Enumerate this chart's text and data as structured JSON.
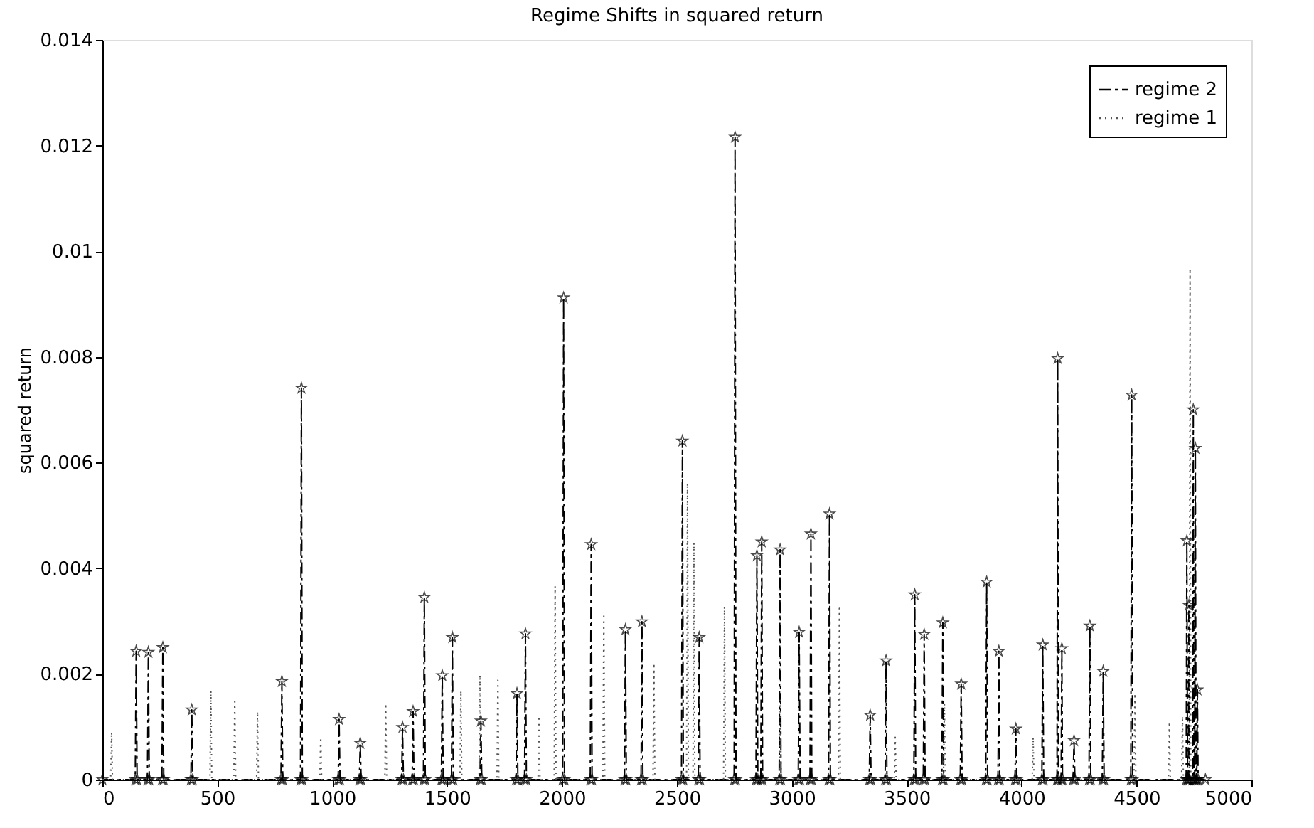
{
  "chart_data": {
    "type": "line",
    "title": "Regime Shifts in squared return",
    "ylabel": "squared return",
    "xlim": [
      0,
      5000
    ],
    "xticks": [
      0,
      500,
      1000,
      1500,
      2000,
      2500,
      3000,
      3500,
      4000,
      4500,
      5000
    ],
    "ylim": [
      0,
      0.014
    ],
    "yticks": [
      0,
      0.002,
      0.004,
      0.006,
      0.008,
      0.01,
      0.012,
      0.014
    ],
    "grid": false,
    "legend": "top right",
    "series": [
      {
        "name": "regime 2",
        "color": "#000000",
        "marker": "star",
        "line_style": "dashed",
        "x": [
          0,
          143,
          147,
          151,
          196,
          200,
          204,
          259,
          263,
          267,
          385,
          389,
          393,
          777,
          781,
          785,
          862,
          866,
          870,
          1026,
          1030,
          1034,
          1118,
          1122,
          1126,
          1302,
          1306,
          1310,
          1348,
          1352,
          1356,
          1397,
          1401,
          1405,
          1475,
          1479,
          1483,
          1519,
          1523,
          1527,
          1643,
          1647,
          1651,
          1800,
          1804,
          1808,
          1837,
          1841,
          1845,
          2003,
          2007,
          2011,
          2123,
          2127,
          2131,
          2272,
          2276,
          2280,
          2344,
          2348,
          2352,
          2520,
          2524,
          2528,
          2593,
          2597,
          2601,
          2749,
          2753,
          2757,
          2844,
          2848,
          2852,
          2865,
          2869,
          2873,
          2945,
          2949,
          2953,
          3028,
          3032,
          3036,
          3079,
          3083,
          3087,
          3160,
          3164,
          3168,
          3337,
          3341,
          3345,
          3406,
          3410,
          3414,
          3531,
          3535,
          3539,
          3572,
          3576,
          3580,
          3653,
          3657,
          3661,
          3733,
          3737,
          3741,
          3844,
          3848,
          3852,
          3897,
          3901,
          3905,
          3971,
          3975,
          3979,
          4088,
          4092,
          4096,
          4154,
          4157,
          4160,
          4172,
          4175,
          4178,
          4224,
          4228,
          4232,
          4293,
          4297,
          4301,
          4351,
          4355,
          4359,
          4475,
          4479,
          4483,
          4716,
          4719,
          4722,
          4725,
          4728,
          4731,
          4744,
          4747,
          4750,
          4753,
          4756,
          4759,
          4762,
          4765,
          4768,
          4800
        ],
        "values": [
          0,
          0,
          0.00243,
          0,
          0,
          0.00241,
          0,
          0,
          0.0025,
          0,
          0,
          0.00132,
          0,
          0,
          0.00186,
          0,
          0,
          0.00741,
          0,
          0,
          0.00114,
          0,
          0,
          0.00069,
          0,
          0,
          0.00099,
          0,
          0,
          0.00129,
          0,
          0,
          0.00345,
          0,
          0,
          0.00197,
          0,
          0,
          0.00269,
          0,
          0,
          0.00111,
          0,
          0,
          0.00163,
          0,
          0,
          0.00276,
          0,
          0,
          0.00912,
          0,
          0,
          0.00445,
          0,
          0,
          0.00284,
          0,
          0,
          0.00299,
          0,
          0,
          0.00641,
          0,
          0,
          0.00269,
          0,
          0,
          0.01216,
          0,
          0,
          0.00424,
          0,
          0,
          0.0045,
          0,
          0,
          0.00435,
          0,
          0,
          0.00279,
          0,
          0,
          0.00465,
          0,
          0,
          0.00503,
          0,
          0,
          0.00122,
          0,
          0,
          0.00225,
          0,
          0,
          0.0035,
          0,
          0,
          0.00275,
          0,
          0,
          0.00297,
          0,
          0,
          0.00181,
          0,
          0,
          0.00374,
          0,
          0,
          0.00243,
          0,
          0,
          0.00096,
          0,
          0,
          0.00255,
          0,
          0,
          0.00797,
          0,
          0,
          0.00248,
          0,
          0,
          0.00074,
          0,
          0,
          0.00291,
          0,
          0,
          0.00205,
          0,
          0,
          0.00728,
          0,
          0,
          0.00452,
          0,
          0,
          0.0033,
          0,
          0,
          0.007,
          0,
          0,
          0.00627,
          0,
          0,
          0.0017,
          0,
          0
        ]
      },
      {
        "name": "regime 1",
        "color": "#555555",
        "marker": "none",
        "line_style": "dotted",
        "x": [
          0,
          36,
          40,
          44,
          468,
          472,
          476,
          572,
          576,
          580,
          671,
          675,
          679,
          946,
          950,
          954,
          1229,
          1233,
          1237,
          1556,
          1560,
          1564,
          1639,
          1643,
          1647,
          1717,
          1721,
          1725,
          1896,
          1900,
          1904,
          1966,
          1970,
          1974,
          2178,
          2182,
          2186,
          2396,
          2400,
          2404,
          2542,
          2546,
          2550,
          2570,
          2574,
          2578,
          2703,
          2707,
          2711,
          2946,
          2950,
          2954,
          3203,
          3207,
          3211,
          3446,
          3450,
          3454,
          3660,
          3664,
          3668,
          4046,
          4050,
          4054,
          4489,
          4493,
          4497,
          4639,
          4643,
          4647,
          4696,
          4700,
          4704,
          4730,
          4733,
          4736,
          4800
        ],
        "values": [
          0,
          0,
          0.0009,
          0,
          0,
          0.00168,
          0,
          0,
          0.00153,
          0,
          0,
          0.00129,
          0,
          0,
          0.0008,
          0,
          0,
          0.00144,
          0,
          0,
          0.00168,
          0,
          0,
          0.00198,
          0,
          0,
          0.00188,
          0,
          0,
          0.0012,
          0,
          0,
          0.00366,
          0,
          0,
          0.00314,
          0,
          0,
          0.0022,
          0,
          0,
          0.00561,
          0,
          0,
          0.00448,
          0,
          0,
          0.00327,
          0,
          0,
          0.0015,
          0,
          0,
          0.00324,
          0,
          0,
          0.0008,
          0,
          0,
          0.00144,
          0,
          0,
          0.0008,
          0,
          0,
          0.00163,
          0,
          0,
          0.00109,
          0,
          0,
          0.0012,
          0,
          0,
          0.00967,
          0,
          0
        ]
      }
    ]
  }
}
